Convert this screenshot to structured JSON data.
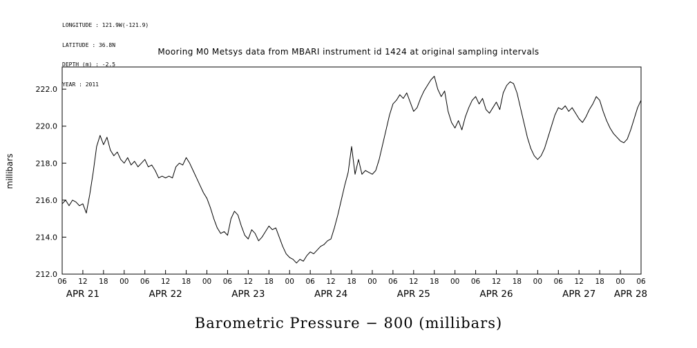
{
  "meta": {
    "longitude": "LONGITUDE : 121.9W(-121.9)",
    "latitude": "LATITUDE : 36.8N",
    "depth": "DEPTH (m) : -2.5",
    "year": "YEAR : 2011"
  },
  "title": "Mooring M0 Metsys data from MBARI instrument id 1424 at original sampling intervals",
  "bottom_title": "Barometric Pressure − 800 (millibars)",
  "chart_data": {
    "type": "line",
    "title": "Mooring M0 Metsys data from MBARI instrument id 1424 at original sampling intervals",
    "subtitle": "Barometric Pressure − 800 (millibars)",
    "ylabel": "millibars",
    "xlabel": "",
    "line_color": "#000000",
    "grid": false,
    "legend": "none",
    "ylim": [
      212.0,
      223.2
    ],
    "yticks": [
      212,
      214,
      216,
      218,
      220,
      222
    ],
    "ytick_labels": [
      "212.0",
      "214.0",
      "216.0",
      "218.0",
      "220.0",
      "222.0"
    ],
    "x_unit": "hours since APR 21 06:00 (2011)",
    "xlim": [
      0,
      168
    ],
    "xticks": [
      0,
      6,
      12,
      18,
      24,
      30,
      36,
      42,
      48,
      54,
      60,
      66,
      72,
      78,
      84,
      90,
      96,
      102,
      108,
      114,
      120,
      126,
      132,
      138,
      144,
      150,
      156,
      162,
      168
    ],
    "xtick_labels": [
      "06",
      "12",
      "18",
      "00",
      "06",
      "12",
      "18",
      "00",
      "06",
      "12",
      "18",
      "00",
      "06",
      "12",
      "18",
      "00",
      "06",
      "12",
      "18",
      "00",
      "06",
      "12",
      "18",
      "00",
      "06",
      "12",
      "18",
      "00",
      "06"
    ],
    "date_ticks": [
      {
        "t": 6,
        "label": "APR 21"
      },
      {
        "t": 30,
        "label": "APR 22"
      },
      {
        "t": 54,
        "label": "APR 23"
      },
      {
        "t": 78,
        "label": "APR 24"
      },
      {
        "t": 102,
        "label": "APR 25"
      },
      {
        "t": 126,
        "label": "APR 26"
      },
      {
        "t": 150,
        "label": "APR 27"
      },
      {
        "t": 165,
        "label": "APR 28"
      }
    ],
    "values_hourly": [
      215.8,
      216.0,
      215.7,
      216.0,
      215.9,
      215.7,
      215.8,
      215.3,
      216.3,
      217.5,
      218.9,
      219.5,
      219.0,
      219.4,
      218.7,
      218.4,
      218.6,
      218.2,
      218.0,
      218.3,
      217.9,
      218.1,
      217.8,
      218.0,
      218.2,
      217.8,
      217.9,
      217.6,
      217.2,
      217.3,
      217.2,
      217.3,
      217.2,
      217.8,
      218.0,
      217.9,
      218.3,
      218.0,
      217.6,
      217.2,
      216.8,
      216.4,
      216.1,
      215.6,
      215.0,
      214.5,
      214.2,
      214.3,
      214.1,
      215.0,
      215.4,
      215.2,
      214.6,
      214.1,
      213.9,
      214.4,
      214.2,
      213.8,
      214.0,
      214.3,
      214.6,
      214.4,
      214.5,
      214.0,
      213.5,
      213.1,
      212.9,
      212.8,
      212.6,
      212.8,
      212.7,
      213.0,
      213.2,
      213.1,
      213.3,
      213.5,
      213.6,
      213.8,
      213.9,
      214.5,
      215.2,
      216.0,
      216.8,
      217.5,
      218.9,
      217.4,
      218.2,
      217.4,
      217.6,
      217.5,
      217.4,
      217.6,
      218.2,
      219.0,
      219.8,
      220.6,
      221.2,
      221.4,
      221.7,
      221.5,
      221.8,
      221.3,
      220.8,
      221.0,
      221.5,
      221.9,
      222.2,
      222.5,
      222.7,
      222.0,
      221.6,
      221.9,
      220.8,
      220.2,
      219.9,
      220.3,
      219.8,
      220.5,
      221.0,
      221.4,
      221.6,
      221.2,
      221.5,
      220.9,
      220.7,
      221.0,
      221.3,
      220.9,
      221.8,
      222.2,
      222.4,
      222.3,
      221.8,
      221.0,
      220.2,
      219.4,
      218.8,
      218.4,
      218.2,
      218.4,
      218.8,
      219.4,
      220.0,
      220.6,
      221.0,
      220.9,
      221.1,
      220.8,
      221.0,
      220.7,
      220.4,
      220.2,
      220.5,
      220.9,
      221.2,
      221.6,
      221.4,
      220.8,
      220.3,
      219.9,
      219.6,
      219.4,
      219.2,
      219.1,
      219.3,
      219.8,
      220.4,
      221.0,
      221.4
    ]
  }
}
